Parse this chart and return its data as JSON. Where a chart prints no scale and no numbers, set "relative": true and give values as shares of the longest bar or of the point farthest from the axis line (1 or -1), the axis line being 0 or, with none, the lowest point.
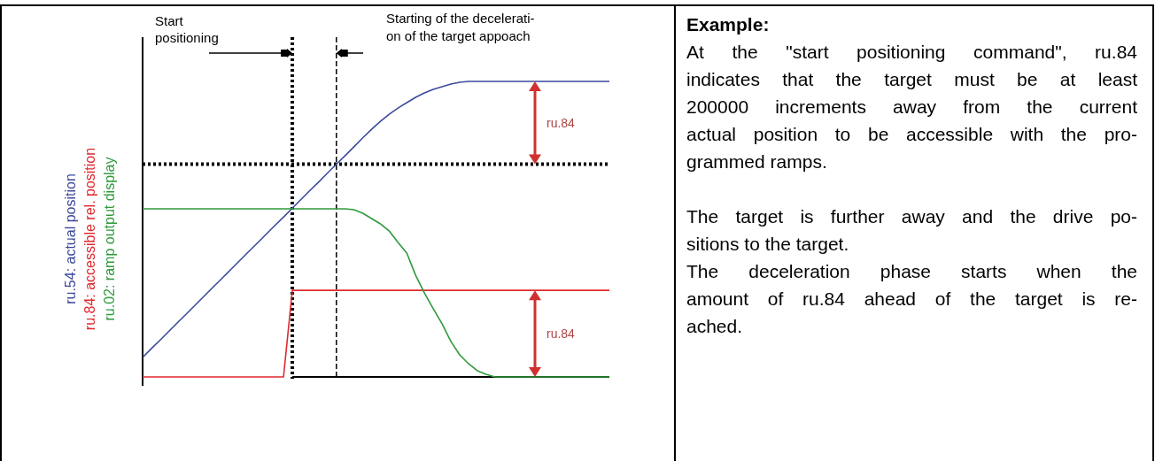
{
  "chart_data": [
    {
      "type": "line",
      "relative": true,
      "legend": "left",
      "categories": [
        null,
        null,
        null,
        null,
        null,
        null,
        null,
        null,
        null,
        null,
        null,
        null,
        null,
        null,
        null,
        null,
        null,
        null,
        null,
        null,
        null,
        null,
        null,
        null,
        null,
        null,
        null,
        null,
        null,
        null,
        null,
        null,
        null,
        null,
        null,
        null,
        null,
        null,
        null,
        null,
        null,
        null,
        null,
        null,
        null,
        null,
        null,
        null,
        null,
        null,
        null,
        null,
        null,
        null
      ],
      "series": [
        {
          "name": "ru.54: actual position",
          "color": "#3d4a9c",
          "values": [
            0.066,
            0.096,
            0.125,
            0.155,
            0.185,
            0.214,
            0.244,
            0.274,
            0.304,
            0.333,
            0.363,
            0.393,
            0.423,
            0.452,
            0.482,
            0.512,
            0.541,
            0.571,
            0.601,
            0.631,
            0.66,
            0.69,
            0.72,
            0.749,
            0.779,
            0.809,
            0.838,
            0.865,
            0.889,
            0.91,
            0.928,
            0.946,
            0.961,
            0.973,
            0.982,
            0.991,
            0.997,
            1,
            1,
            1,
            1,
            1,
            1,
            1,
            1,
            1,
            1,
            1,
            1,
            1,
            1,
            1,
            1,
            1
          ]
        },
        {
          "name": "ru.84: accessible rel. position",
          "color": "#e0282e",
          "values": [
            0,
            0,
            0,
            0,
            0,
            0,
            0,
            0,
            0,
            0,
            0,
            0,
            0,
            0,
            0,
            0,
            0,
            0.293,
            0.293,
            0.293,
            0.293,
            0.293,
            0.293,
            0.293,
            0.293,
            0.293,
            0.293,
            0.293,
            0.293,
            0.293,
            0.293,
            0.293,
            0.293,
            0.293,
            0.293,
            0.293,
            0.293,
            0.293,
            0.293,
            0.293,
            0.293,
            0.293,
            0.293,
            0.293,
            0.293,
            0.293,
            0.293,
            0.293,
            0.293,
            0.293,
            0.293,
            0.293,
            0.293,
            0.293
          ]
        },
        {
          "name": "ru.02: ramp output display",
          "color": "#2e9a3a",
          "values": [
            0.569,
            0.569,
            0.569,
            0.569,
            0.569,
            0.569,
            0.569,
            0.569,
            0.569,
            0.569,
            0.569,
            0.569,
            0.569,
            0.569,
            0.569,
            0.569,
            0.569,
            0.569,
            0.569,
            0.569,
            0.569,
            0.569,
            0.569,
            0.569,
            0.566,
            0.554,
            0.536,
            0.518,
            0.494,
            0.455,
            0.419,
            0.344,
            0.284,
            0.231,
            0.18,
            0.12,
            0.075,
            0.045,
            0.021,
            0.009,
            0,
            0,
            0,
            0,
            0,
            0,
            0,
            0,
            0,
            0,
            0,
            0,
            0,
            0
          ]
        }
      ],
      "ref_lines": [
        {
          "axis": "y",
          "value": 0.72,
          "color": "#000000",
          "line_style": "dotted"
        }
      ],
      "annotations": [
        "Start\npositioning",
        "Starting of the decelerati-\non of the target appoach",
        "ru.84",
        "ru.84"
      ]
    },
    {
      "type": "other",
      "title": "Example:",
      "annotations": [
        "At the \"start positioning command\", ru.84\nindicates that the target must be at least\n200000 increments away from the current\nactual position to be accessible with the pro-\ngrammed ramps.\n\nThe target is further away and the drive po-\nsitions to the target.\nThe deceleration phase starts when the\namount of ru.84 ahead of the target is re-\nached."
      ]
    }
  ]
}
